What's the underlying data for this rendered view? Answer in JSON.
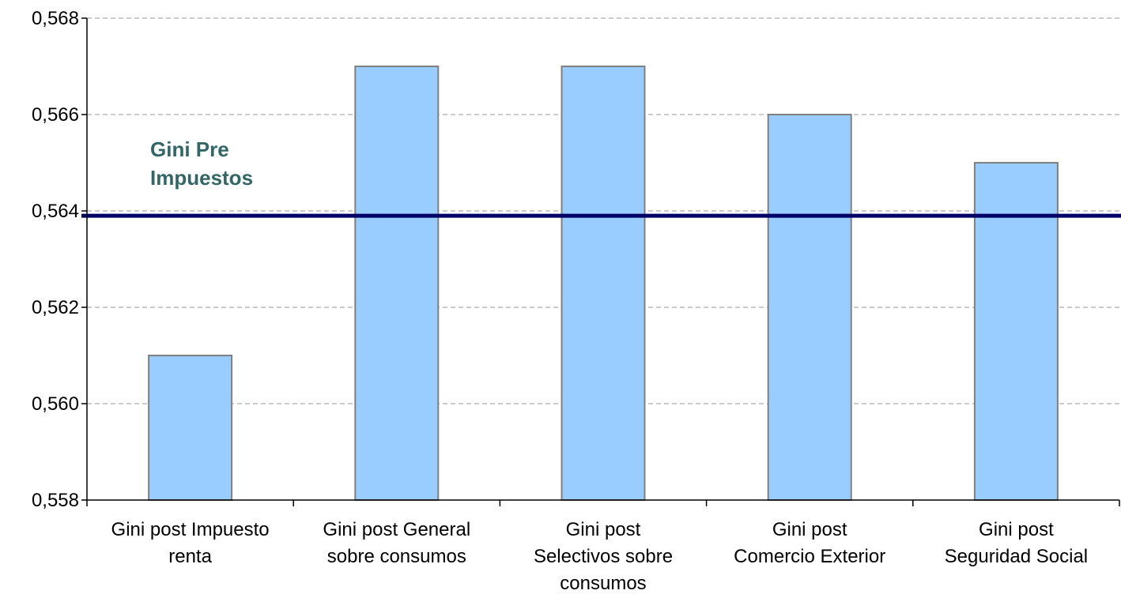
{
  "chart_data": {
    "type": "bar",
    "categories": [
      [
        "Gini post Impuesto",
        "renta"
      ],
      [
        "Gini post General",
        "sobre consumos"
      ],
      [
        "Gini post",
        "Selectivos sobre",
        "consumos"
      ],
      [
        "Gini post",
        "Comercio Exterior"
      ],
      [
        "Gini post",
        "Seguridad Social"
      ]
    ],
    "values": [
      0.561,
      0.567,
      0.567,
      0.566,
      0.565
    ],
    "ylim": [
      0.558,
      0.568
    ],
    "yticks": [
      0.558,
      0.56,
      0.562,
      0.564,
      0.566,
      0.568
    ],
    "ytick_labels": [
      "0,558",
      "0,560",
      "0,562",
      "0,564",
      "0,566",
      "0,568"
    ],
    "grid": true,
    "reference_line": {
      "value": 0.5639,
      "label": [
        "Gini Pre",
        "Impuestos"
      ],
      "color": "#000066",
      "label_color": "#336666"
    },
    "colors": {
      "bar_fill": "#99ccff",
      "bar_stroke": "#808080",
      "grid": "#999999",
      "axis": "#000000"
    }
  }
}
